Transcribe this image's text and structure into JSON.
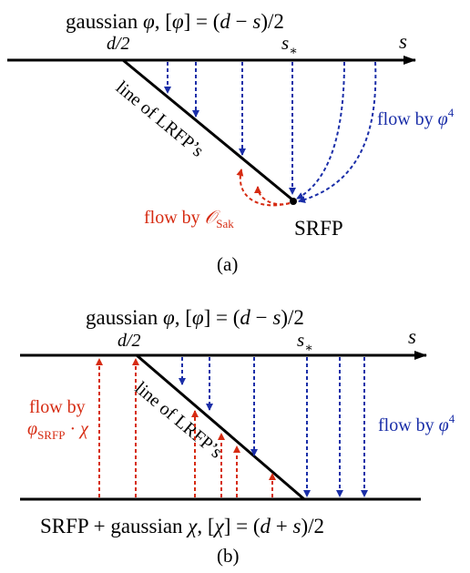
{
  "panel_a": {
    "title_prefix": "gaussian ",
    "phi": "φ",
    "title_mid": ", [",
    "title_end": "] = (",
    "d": "d",
    "minus": " − ",
    "s": "s",
    "close_half": ")/2",
    "d_half": "d/2",
    "s_star": "s",
    "star": "∗",
    "axis_s": "s",
    "line_label": "line of LRFP’s",
    "flow_phi4": "flow by ",
    "phi4_exp": "4",
    "flow_sak": "flow by ",
    "O": "𝒪",
    "sak_sub": "Sak",
    "srfp": "SRFP",
    "caption": "(a)"
  },
  "panel_b": {
    "title_prefix": "gaussian ",
    "phi": "φ",
    "title_mid": ", [",
    "title_end": "] = (",
    "d": "d",
    "minus": " − ",
    "s": "s",
    "close_half": ")/2",
    "d_half": "d/2",
    "s_star": "s",
    "star": "∗",
    "axis_s": "s",
    "line_label": "line of LRFP’s",
    "flow_phi4": "flow by ",
    "phi4_exp": "4",
    "flow_by": "flow by",
    "srfp_sub": "SRFP",
    "chi_dot": " · ",
    "chi": "χ",
    "bottom_prefix": "SRFP + gaussian ",
    "bottom_mid": ", [",
    "bottom_end": "] = (",
    "plus": " + ",
    "caption": "(b)"
  },
  "colors": {
    "red": "#d62b12",
    "blue": "#1a2ea8",
    "black": "#000000"
  }
}
